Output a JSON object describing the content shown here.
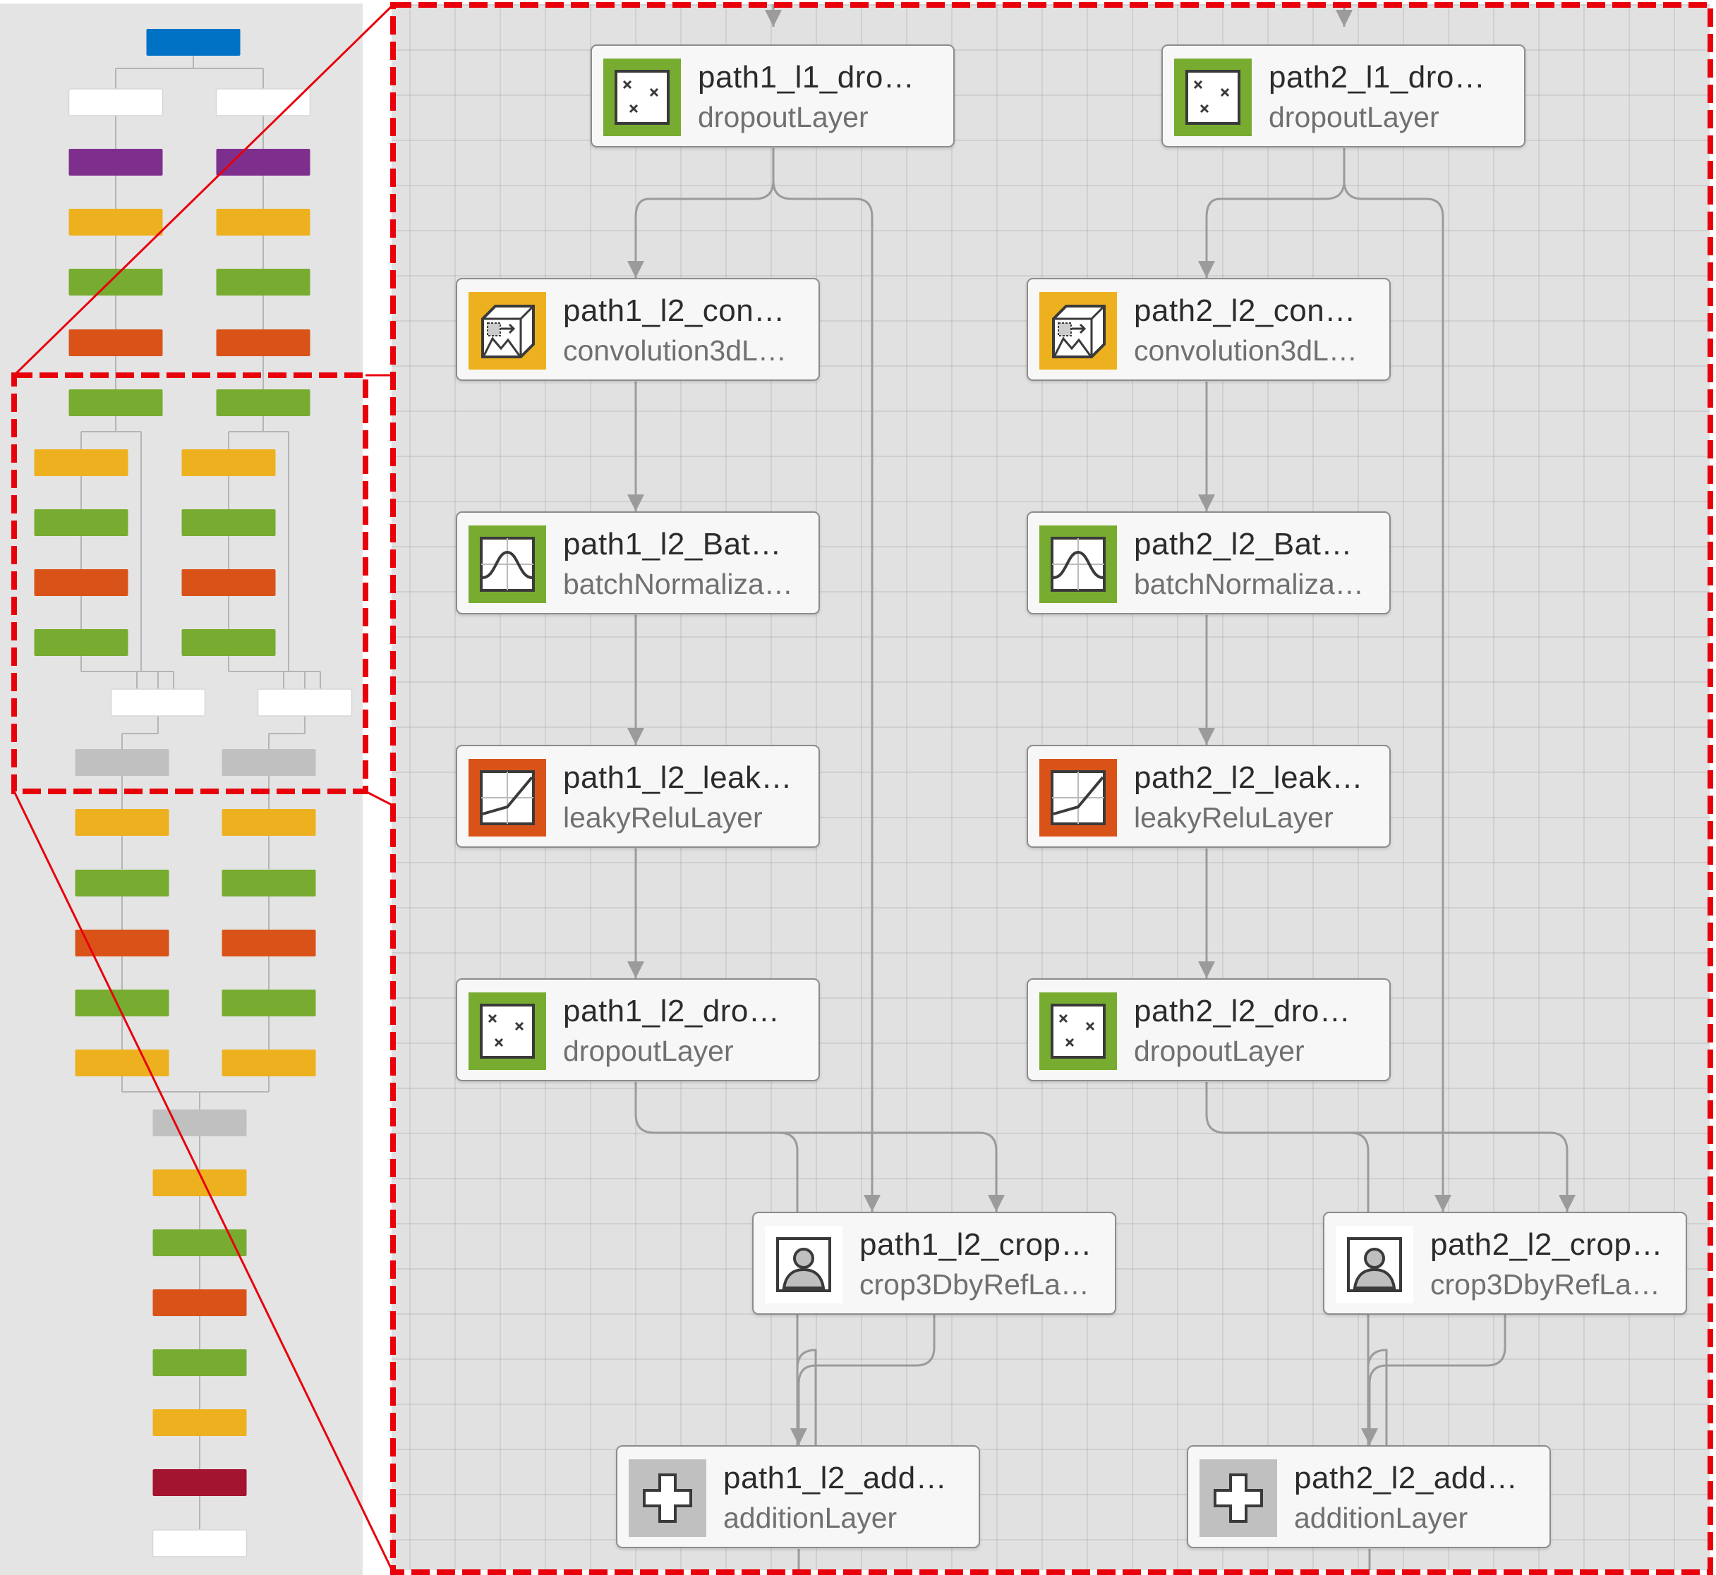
{
  "colors": {
    "blue": "#0072c6",
    "white_block": "#ffffff",
    "purple": "#7e2f8e",
    "yellow": "#edb120",
    "green": "#77ac30",
    "orange": "#d95319",
    "gray": "#c0c0c0",
    "crimson": "#a2142f",
    "panel_bg": "#e4e4e4",
    "canvas_bg": "#e1e1e1",
    "highlight_red": "#e8000b"
  },
  "overview": {
    "blocks": [
      {
        "color": "blue"
      },
      {
        "color": "white_block"
      },
      {
        "color": "white_block"
      },
      {
        "color": "purple"
      },
      {
        "color": "purple"
      },
      {
        "color": "yellow"
      },
      {
        "color": "yellow"
      },
      {
        "color": "green"
      },
      {
        "color": "green"
      },
      {
        "color": "orange"
      },
      {
        "color": "orange"
      },
      {
        "color": "green"
      },
      {
        "color": "green"
      },
      {
        "color": "yellow"
      },
      {
        "color": "yellow"
      },
      {
        "color": "green"
      },
      {
        "color": "green"
      },
      {
        "color": "orange"
      },
      {
        "color": "orange"
      },
      {
        "color": "green"
      },
      {
        "color": "green"
      },
      {
        "color": "white_block"
      },
      {
        "color": "white_block"
      },
      {
        "color": "gray"
      },
      {
        "color": "gray"
      },
      {
        "color": "yellow"
      },
      {
        "color": "yellow"
      },
      {
        "color": "green"
      },
      {
        "color": "green"
      },
      {
        "color": "orange"
      },
      {
        "color": "orange"
      },
      {
        "color": "green"
      },
      {
        "color": "green"
      },
      {
        "color": "yellow"
      },
      {
        "color": "yellow"
      },
      {
        "color": "gray"
      },
      {
        "color": "yellow"
      },
      {
        "color": "green"
      },
      {
        "color": "orange"
      },
      {
        "color": "green"
      },
      {
        "color": "yellow"
      },
      {
        "color": "crimson"
      },
      {
        "color": "white_block"
      }
    ]
  },
  "detail": {
    "nodes": [
      {
        "id": "p1_l1_drop",
        "name": "path1_l1_dro…",
        "type": "dropoutLayer",
        "icon": "dropout-icon",
        "color": "green"
      },
      {
        "id": "p2_l1_drop",
        "name": "path2_l1_dro…",
        "type": "dropoutLayer",
        "icon": "dropout-icon",
        "color": "green"
      },
      {
        "id": "p1_l2_conv",
        "name": "path1_l2_con…",
        "type": "convolution3dL…",
        "icon": "convolution-icon",
        "color": "yellow"
      },
      {
        "id": "p2_l2_conv",
        "name": "path2_l2_con…",
        "type": "convolution3dL…",
        "icon": "convolution-icon",
        "color": "yellow"
      },
      {
        "id": "p1_l2_bn",
        "name": "path1_l2_Bat…",
        "type": "batchNormaliza…",
        "icon": "batchnorm-icon",
        "color": "green"
      },
      {
        "id": "p2_l2_bn",
        "name": "path2_l2_Bat…",
        "type": "batchNormaliza…",
        "icon": "batchnorm-icon",
        "color": "green"
      },
      {
        "id": "p1_l2_leak",
        "name": "path1_l2_leak…",
        "type": "leakyReluLayer",
        "icon": "leaky-relu-icon",
        "color": "orange"
      },
      {
        "id": "p2_l2_leak",
        "name": "path2_l2_leak…",
        "type": "leakyReluLayer",
        "icon": "leaky-relu-icon",
        "color": "orange"
      },
      {
        "id": "p1_l2_drop",
        "name": "path1_l2_dro…",
        "type": "dropoutLayer",
        "icon": "dropout-icon",
        "color": "green"
      },
      {
        "id": "p2_l2_drop",
        "name": "path2_l2_dro…",
        "type": "dropoutLayer",
        "icon": "dropout-icon",
        "color": "green"
      },
      {
        "id": "p1_l2_crop",
        "name": "path1_l2_crop…",
        "type": "crop3DbyRefLa…",
        "icon": "custom-layer-icon",
        "color": "white_block"
      },
      {
        "id": "p2_l2_crop",
        "name": "path2_l2_crop…",
        "type": "crop3DbyRefLa…",
        "icon": "custom-layer-icon",
        "color": "white_block"
      },
      {
        "id": "p1_l2_add",
        "name": "path1_l2_add…",
        "type": "additionLayer",
        "icon": "addition-icon",
        "color": "gray"
      },
      {
        "id": "p2_l2_add",
        "name": "path2_l2_add…",
        "type": "additionLayer",
        "icon": "addition-icon",
        "color": "gray"
      }
    ]
  }
}
